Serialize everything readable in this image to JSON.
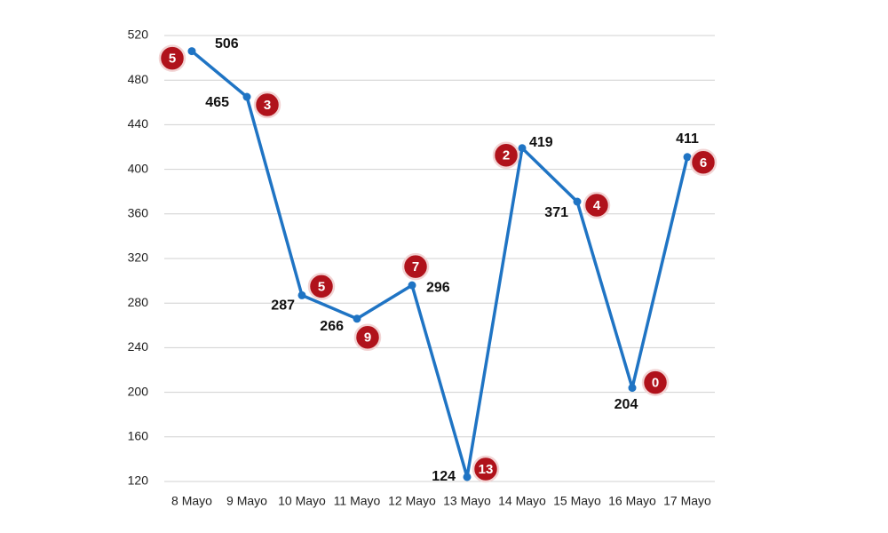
{
  "chart_data": {
    "type": "line",
    "categories": [
      "8 Mayo",
      "9 Mayo",
      "10 Mayo",
      "11 Mayo",
      "12 Mayo",
      "13 Mayo",
      "14 Mayo",
      "15 Mayo",
      "16 Mayo",
      "17 Mayo"
    ],
    "series": [
      {
        "color": "#1f74c4",
        "values": [
          506,
          465,
          287,
          266,
          296,
          124,
          419,
          371,
          204,
          411
        ]
      }
    ],
    "badges": [
      5,
      3,
      5,
      9,
      7,
      13,
      2,
      4,
      0,
      6
    ],
    "badge_color": "#b0121b",
    "ylim": [
      120,
      520
    ],
    "yticks": [
      120,
      160,
      200,
      240,
      280,
      320,
      360,
      400,
      440,
      480,
      520
    ],
    "grid": true
  }
}
